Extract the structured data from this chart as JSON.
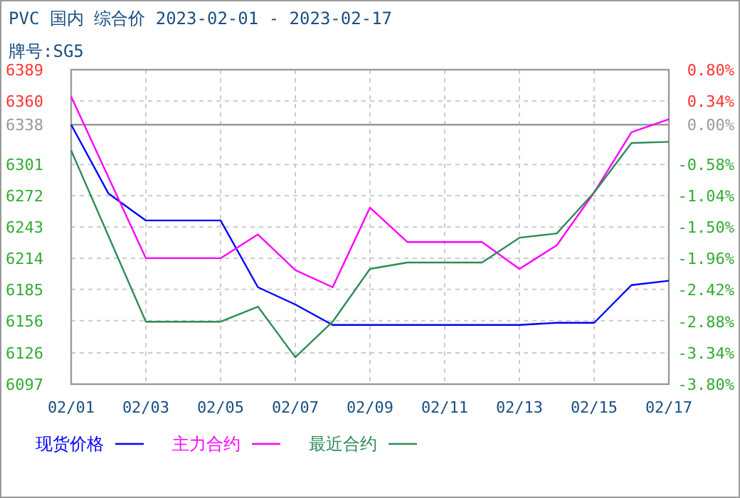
{
  "chart_data": {
    "type": "line",
    "title": "PVC 国内 综合价 2023-02-01 - 2023-02-17",
    "subtitle": "牌号:SG5",
    "xlim": [
      "--02-01",
      "--02-17"
    ],
    "xticks": [
      {
        "value": "--02-01",
        "label": "02/01"
      },
      {
        "value": "--02-03",
        "label": "02/03"
      },
      {
        "value": "--02-05",
        "label": "02/05"
      },
      {
        "value": "--02-07",
        "label": "02/07"
      },
      {
        "value": "--02-09",
        "label": "02/09"
      },
      {
        "value": "--02-11",
        "label": "02/11"
      },
      {
        "value": "--02-13",
        "label": "02/13"
      },
      {
        "value": "--02-15",
        "label": "02/15"
      },
      {
        "value": "--02-17",
        "label": "02/17"
      }
    ],
    "ylim": [
      6097,
      6389
    ],
    "yticks": [
      6389,
      6360,
      6338,
      6301,
      6272,
      6243,
      6214,
      6185,
      6156,
      6126,
      6097
    ],
    "y2lim": [
      -3.8,
      0.8
    ],
    "y2ticks": [
      {
        "value": 0.8,
        "label": "0.80%"
      },
      {
        "value": 0.34,
        "label": "0.34%"
      },
      {
        "value": 0,
        "label": "0.00%"
      },
      {
        "value": -0.58,
        "label": "-0.58%"
      },
      {
        "value": -1.04,
        "label": "-1.04%"
      },
      {
        "value": -1.5,
        "label": "-1.50%"
      },
      {
        "value": -1.96,
        "label": "-1.96%"
      },
      {
        "value": -2.42,
        "label": "-2.42%"
      },
      {
        "value": -2.88,
        "label": "-2.88%"
      },
      {
        "value": -3.34,
        "label": "-3.34%"
      },
      {
        "value": -3.8,
        "label": "-3.80%"
      }
    ],
    "ref_lines": [
      {
        "axis": "y",
        "value": 6338,
        "color": "#999999"
      }
    ],
    "grid": true,
    "legend": "bottom",
    "marker": "none",
    "line_style": "solid",
    "series": [
      {
        "name": "现货价格",
        "color": "#0000ff",
        "x": [
          "--02-01",
          "--02-02",
          "--02-03",
          "--02-05",
          "--02-06",
          "--02-07",
          "--02-08",
          "--02-13",
          "--02-14",
          "--02-15",
          "--02-16",
          "--02-17"
        ],
        "values": [
          6338,
          6274,
          6249,
          6249,
          6187,
          6171,
          6152,
          6152,
          6154,
          6154,
          6189,
          6193
        ]
      },
      {
        "name": "主力合约",
        "color": "#ff00ff",
        "x": [
          "--02-01",
          "--02-03",
          "--02-05",
          "--02-06",
          "--02-07",
          "--02-08",
          "--02-09",
          "--02-10",
          "--02-12",
          "--02-13",
          "--02-14",
          "--02-15",
          "--02-16",
          "--02-17"
        ],
        "values": [
          6364,
          6214,
          6214,
          6236,
          6203,
          6187,
          6261,
          6229,
          6229,
          6204,
          6226,
          6275,
          6331,
          6343
        ]
      },
      {
        "name": "最近合约",
        "color": "#2e8b57",
        "x": [
          "--02-01",
          "--02-03",
          "--02-05",
          "--02-06",
          "--02-07",
          "--02-08",
          "--02-09",
          "--02-10",
          "--02-12",
          "--02-13",
          "--02-14",
          "--02-15",
          "--02-16",
          "--02-17"
        ],
        "values": [
          6314,
          6155,
          6155,
          6169,
          6122,
          6155,
          6204,
          6210,
          6210,
          6233,
          6237,
          6275,
          6321,
          6322
        ]
      }
    ]
  }
}
